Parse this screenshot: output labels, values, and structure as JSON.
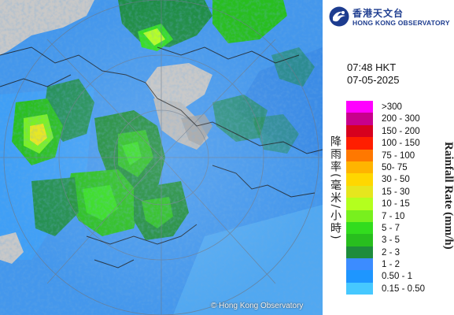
{
  "brand": {
    "name_cn": "香港天文台",
    "name_en": "HONG KONG OBSERVATORY"
  },
  "timestamp": {
    "time": "07:48 HKT",
    "date": "07-05-2025"
  },
  "map": {
    "copyright": "© Hong Kong Observatory",
    "colors": {
      "sea": "#2f6fbf",
      "land": "#c8c8c8"
    }
  },
  "legend": {
    "title_en": "Rainfall Rate (mm/h)",
    "title_cn": "降雨率(毫米/小時)",
    "items": [
      {
        "label": ">300",
        "color": "#ff00ff"
      },
      {
        "label": "200 - 300",
        "color": "#c8008c"
      },
      {
        "label": "150 - 200",
        "color": "#d7001e"
      },
      {
        "label": "100 - 150",
        "color": "#ff1e00"
      },
      {
        "label": "75 - 100",
        "color": "#ff7800"
      },
      {
        "label": "50- 75",
        "color": "#ffb400"
      },
      {
        "label": "30 - 50",
        "color": "#ffd700"
      },
      {
        "label": "15 - 30",
        "color": "#e6e61e"
      },
      {
        "label": "10 - 15",
        "color": "#b4ff1e"
      },
      {
        "label": "7 - 10",
        "color": "#78f01e"
      },
      {
        "label": "5 - 7",
        "color": "#32dc1e"
      },
      {
        "label": "3 - 5",
        "color": "#28be1e"
      },
      {
        "label": "2 - 3",
        "color": "#1e8c3c"
      },
      {
        "label": "1 - 2",
        "color": "#3c8cff"
      },
      {
        "label": "0.50 - 1",
        "color": "#1e96ff"
      },
      {
        "label": "0.15 - 0.50",
        "color": "#46c8ff"
      }
    ]
  }
}
